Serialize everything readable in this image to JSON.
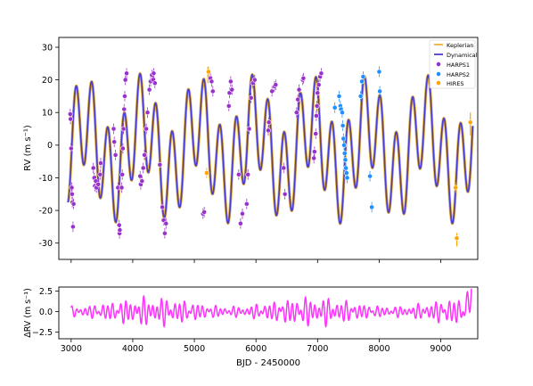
{
  "chart_data": [
    {
      "type": "line",
      "panel": "top",
      "ylabel": "RV (m s⁻¹)",
      "xlim": [
        2800,
        9600
      ],
      "ylim": [
        -35,
        33
      ],
      "yticks": [
        30,
        20,
        10,
        0,
        -10,
        -20,
        -30
      ],
      "grid": false,
      "legend_position": "top-right",
      "legend": [
        "Keplerian",
        "Dynamical",
        "HARPS1",
        "HARPS2",
        "HIRES"
      ],
      "colors": {
        "keplerian": "#e8b43a",
        "dynamical": "#4b3fcf",
        "harps1": "#9932cc",
        "harps2": "#1e90ff",
        "hires": "#ffa500",
        "marker_edge": "#ffffff"
      },
      "model": {
        "offset": -1,
        "components": [
          {
            "amplitude": 14,
            "period": 260,
            "phase": 2.6
          },
          {
            "amplitude": 9,
            "period": 920,
            "phase": 4.7
          }
        ],
        "hires_spikes": [
          {
            "x": 5220,
            "y1": 19,
            "y2": 24
          },
          {
            "x": 9480,
            "y1": 3,
            "y2": 10
          },
          {
            "x": 9260,
            "y1": -31,
            "y2": -27
          }
        ]
      },
      "series": [
        {
          "name": "HARPS1",
          "points": [
            [
              2985,
              9.5
            ],
            [
              2990,
              8.0
            ],
            [
              3000,
              -1.0
            ],
            [
              3010,
              -13.0
            ],
            [
              3015,
              -15.0
            ],
            [
              3020,
              -17.5
            ],
            [
              3030,
              -25.0
            ],
            [
              3040,
              -18.0
            ],
            [
              3360,
              -7.0
            ],
            [
              3375,
              -10.0
            ],
            [
              3385,
              -12.5
            ],
            [
              3400,
              -11.0
            ],
            [
              3410,
              -13.0
            ],
            [
              3440,
              -12.0
            ],
            [
              3470,
              -9.0
            ],
            [
              3480,
              -5.5
            ],
            [
              3690,
              5.0
            ],
            [
              3700,
              1.0
            ],
            [
              3720,
              -3.0
            ],
            [
              3760,
              -13.0
            ],
            [
              3780,
              -24.5
            ],
            [
              3785,
              -27.0
            ],
            [
              3790,
              -26.0
            ],
            [
              3820,
              -13.0
            ],
            [
              3830,
              -9.0
            ],
            [
              3840,
              -1.0
            ],
            [
              3850,
              5.0
            ],
            [
              3860,
              11.0
            ],
            [
              3870,
              15.0
            ],
            [
              3880,
              20.0
            ],
            [
              3900,
              22.0
            ],
            [
              4120,
              -9.5
            ],
            [
              4130,
              -12.0
            ],
            [
              4150,
              -11.0
            ],
            [
              4170,
              -7.0
            ],
            [
              4190,
              -3.0
            ],
            [
              4220,
              5.0
            ],
            [
              4240,
              10.0
            ],
            [
              4270,
              17.0
            ],
            [
              4290,
              19.5
            ],
            [
              4310,
              21.5
            ],
            [
              4330,
              20.0
            ],
            [
              4340,
              22.0
            ],
            [
              4360,
              19.0
            ],
            [
              4440,
              -6.0
            ],
            [
              4480,
              -19.0
            ],
            [
              4500,
              -23.0
            ],
            [
              4520,
              -27.0
            ],
            [
              4540,
              -24.0
            ],
            [
              5140,
              -21.0
            ],
            [
              5160,
              -20.5
            ],
            [
              5260,
              20.5
            ],
            [
              5280,
              19.5
            ],
            [
              5300,
              16.5
            ],
            [
              5560,
              12.0
            ],
            [
              5570,
              16.0
            ],
            [
              5590,
              19.5
            ],
            [
              5610,
              17.0
            ],
            [
              5720,
              -9.0
            ],
            [
              5750,
              -24.0
            ],
            [
              5780,
              -21.0
            ],
            [
              5850,
              -18.0
            ],
            [
              5870,
              -9.0
            ],
            [
              5890,
              5.0
            ],
            [
              5920,
              14.5
            ],
            [
              5950,
              19.0
            ],
            [
              5980,
              20.0
            ],
            [
              6200,
              4.5
            ],
            [
              6210,
              7.0
            ],
            [
              6260,
              16.5
            ],
            [
              6300,
              18.0
            ],
            [
              6320,
              18.5
            ],
            [
              6450,
              -7.0
            ],
            [
              6470,
              -15.0
            ],
            [
              6660,
              10.0
            ],
            [
              6680,
              14.0
            ],
            [
              6700,
              17.0
            ],
            [
              6760,
              20.0
            ],
            [
              6770,
              20.5
            ],
            [
              6940,
              -4.0
            ],
            [
              6950,
              -2.0
            ],
            [
              6970,
              3.5
            ],
            [
              6980,
              9.0
            ],
            [
              6990,
              12.0
            ],
            [
              7000,
              16.0
            ],
            [
              7020,
              18.5
            ],
            [
              7040,
              21.0
            ],
            [
              7060,
              22.0
            ]
          ]
        },
        {
          "name": "HARPS2",
          "points": [
            [
              7280,
              11.5
            ],
            [
              7350,
              15.0
            ],
            [
              7370,
              12.0
            ],
            [
              7380,
              11.0
            ],
            [
              7400,
              10.0
            ],
            [
              7410,
              6.0
            ],
            [
              7420,
              2.0
            ],
            [
              7430,
              0.0
            ],
            [
              7440,
              -2.5
            ],
            [
              7450,
              -4.5
            ],
            [
              7460,
              -7.0
            ],
            [
              7470,
              -8.5
            ],
            [
              7480,
              -10.0
            ],
            [
              7700,
              15.0
            ],
            [
              7720,
              19.5
            ],
            [
              7740,
              21.0
            ],
            [
              7850,
              -9.5
            ],
            [
              7880,
              -19.0
            ],
            [
              8000,
              22.5
            ],
            [
              8010,
              16.5
            ]
          ]
        },
        {
          "name": "HIRES",
          "points": [
            [
              5200,
              -8.5
            ],
            [
              5230,
              22.5
            ],
            [
              9240,
              -13.0
            ],
            [
              9260,
              -28.5
            ],
            [
              9480,
              7.0
            ]
          ]
        }
      ]
    },
    {
      "type": "line",
      "panel": "bottom",
      "xlabel": "BJD - 2450000",
      "ylabel": "ΔRV (m s⁻¹)",
      "xlim": [
        2800,
        9600
      ],
      "ylim": [
        -3.3,
        3.0
      ],
      "xticks": [
        3000,
        4000,
        5000,
        6000,
        7000,
        8000,
        9000
      ],
      "yticks": [
        2.5,
        0.0,
        -2.5
      ],
      "ytick_labels": [
        "2.5",
        "0.0",
        "−2.5"
      ],
      "grid": false,
      "colors": {
        "residual": "#ff33ff"
      },
      "x_range": [
        3000,
        9500
      ],
      "residual_model": {
        "amplitude": 1.2,
        "periods": [
          73,
          97,
          131
        ]
      }
    }
  ]
}
